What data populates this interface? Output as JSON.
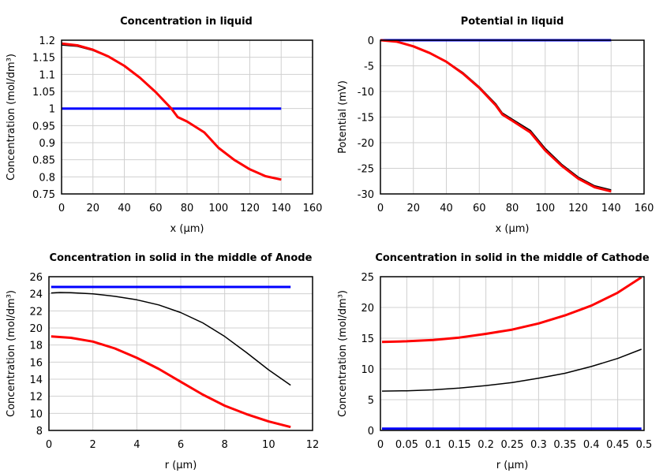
{
  "chart_data": [
    {
      "type": "line",
      "title": "Concentration in liquid",
      "xlabel": "x (µm)",
      "ylabel": "Concentration (mol/dm³)",
      "xlim": [
        0,
        160
      ],
      "ylim": [
        0.75,
        1.2
      ],
      "xticks": [
        "0",
        "20",
        "40",
        "60",
        "80",
        "100",
        "120",
        "140",
        "160"
      ],
      "yticks": [
        "0.75",
        "0.8",
        "0.85",
        "0.9",
        "0.95",
        "1",
        "1.05",
        "1.1",
        "1.15",
        "1.2"
      ],
      "grid": true,
      "series": [
        {
          "color": "#0000ff",
          "width": 3,
          "x": [
            0,
            140
          ],
          "y": [
            1.0,
            1.0
          ]
        },
        {
          "color": "#000000",
          "width": 1.5,
          "x": [
            0,
            10,
            20,
            30,
            40,
            50,
            60,
            70,
            74,
            80,
            91,
            100,
            110,
            120,
            130,
            140
          ],
          "y": [
            1.186,
            1.182,
            1.17,
            1.151,
            1.124,
            1.09,
            1.048,
            1.0,
            0.975,
            0.962,
            0.93,
            0.885,
            0.85,
            0.822,
            0.802,
            0.792
          ]
        },
        {
          "color": "#ff0000",
          "width": 3,
          "x": [
            0,
            10,
            20,
            30,
            40,
            50,
            60,
            70,
            74,
            80,
            91,
            100,
            110,
            120,
            130,
            140
          ],
          "y": [
            1.19,
            1.185,
            1.172,
            1.152,
            1.125,
            1.09,
            1.048,
            1.0,
            0.975,
            0.962,
            0.93,
            0.885,
            0.85,
            0.822,
            0.802,
            0.792
          ]
        }
      ]
    },
    {
      "type": "line",
      "title": "Potential in liquid",
      "xlabel": "x (µm)",
      "ylabel": "Potential (mV)",
      "xlim": [
        0,
        160
      ],
      "ylim": [
        -30,
        0
      ],
      "xticks": [
        "0",
        "20",
        "40",
        "60",
        "80",
        "100",
        "120",
        "140",
        "160"
      ],
      "yticks": [
        "-30",
        "-25",
        "-20",
        "-15",
        "-10",
        "-5",
        "0"
      ],
      "grid": true,
      "series": [
        {
          "color": "#0000ff",
          "width": 3,
          "x": [
            0,
            140
          ],
          "y": [
            0,
            0
          ]
        },
        {
          "color": "#000000",
          "width": 1.5,
          "x": [
            0,
            10,
            20,
            30,
            40,
            50,
            60,
            70,
            74,
            80,
            91,
            100,
            110,
            120,
            130,
            140
          ],
          "y": [
            0,
            -0.3,
            -1.2,
            -2.5,
            -4.1,
            -6.3,
            -9.1,
            -12.4,
            -14.2,
            -15.4,
            -17.6,
            -21.1,
            -24.2,
            -26.7,
            -28.4,
            -29.2
          ]
        },
        {
          "color": "#ff0000",
          "width": 3,
          "x": [
            0,
            10,
            20,
            30,
            40,
            50,
            60,
            70,
            74,
            80,
            91,
            100,
            110,
            120,
            130,
            140
          ],
          "y": [
            0,
            -0.3,
            -1.2,
            -2.5,
            -4.2,
            -6.5,
            -9.3,
            -12.7,
            -14.5,
            -15.7,
            -18,
            -21.5,
            -24.5,
            -27,
            -28.7,
            -29.5
          ]
        }
      ]
    },
    {
      "type": "line",
      "title": "Concentration in solid in the middle of Anode",
      "xlabel": "r (µm)",
      "ylabel": "Concentration (mol/dm³)",
      "xlim": [
        0,
        12
      ],
      "ylim": [
        8,
        26
      ],
      "xticks": [
        "0",
        "2",
        "4",
        "6",
        "8",
        "10",
        "12"
      ],
      "yticks": [
        "8",
        "10",
        "12",
        "14",
        "16",
        "18",
        "20",
        "22",
        "24",
        "26"
      ],
      "grid": true,
      "series": [
        {
          "color": "#0000ff",
          "width": 3,
          "x": [
            0.1,
            11
          ],
          "y": [
            24.8,
            24.8
          ]
        },
        {
          "color": "#000000",
          "width": 1.5,
          "x": [
            0.1,
            0.5,
            1,
            2,
            3,
            4,
            5,
            6,
            7,
            8,
            9,
            10,
            11
          ],
          "y": [
            24.1,
            24.15,
            24.13,
            24.0,
            23.7,
            23.3,
            22.7,
            21.8,
            20.6,
            19.0,
            17.1,
            15.1,
            13.3
          ]
        },
        {
          "color": "#ff0000",
          "width": 3,
          "x": [
            0.1,
            1,
            2,
            3,
            4,
            5,
            6,
            7,
            8,
            9,
            10,
            11
          ],
          "y": [
            19.0,
            18.85,
            18.4,
            17.6,
            16.5,
            15.2,
            13.7,
            12.2,
            10.9,
            9.9,
            9.05,
            8.4
          ]
        }
      ]
    },
    {
      "type": "line",
      "title": "Concentration in solid in the middle of Cathode",
      "xlabel": "r (µm)",
      "ylabel": "Concentration (mol/dm³)",
      "xlim": [
        0,
        0.5
      ],
      "ylim": [
        0,
        25
      ],
      "xticks": [
        "0",
        "0.05",
        "0.1",
        "0.15",
        "0.2",
        "0.25",
        "0.3",
        "0.35",
        "0.4",
        "0.45",
        "0.5"
      ],
      "yticks": [
        "0",
        "5",
        "10",
        "15",
        "20",
        "25"
      ],
      "grid": true,
      "series": [
        {
          "color": "#0000ff",
          "width": 3,
          "x": [
            0.003,
            0.495
          ],
          "y": [
            0.3,
            0.3
          ]
        },
        {
          "color": "#000000",
          "width": 1.5,
          "x": [
            0.003,
            0.05,
            0.1,
            0.15,
            0.2,
            0.25,
            0.3,
            0.35,
            0.4,
            0.45,
            0.495
          ],
          "y": [
            6.4,
            6.45,
            6.6,
            6.9,
            7.3,
            7.8,
            8.5,
            9.3,
            10.4,
            11.7,
            13.2
          ]
        },
        {
          "color": "#ff0000",
          "width": 3,
          "x": [
            0.003,
            0.05,
            0.1,
            0.15,
            0.2,
            0.25,
            0.3,
            0.35,
            0.4,
            0.45,
            0.495
          ],
          "y": [
            14.4,
            14.5,
            14.7,
            15.1,
            15.7,
            16.4,
            17.4,
            18.7,
            20.3,
            22.4,
            24.9
          ]
        }
      ]
    }
  ]
}
